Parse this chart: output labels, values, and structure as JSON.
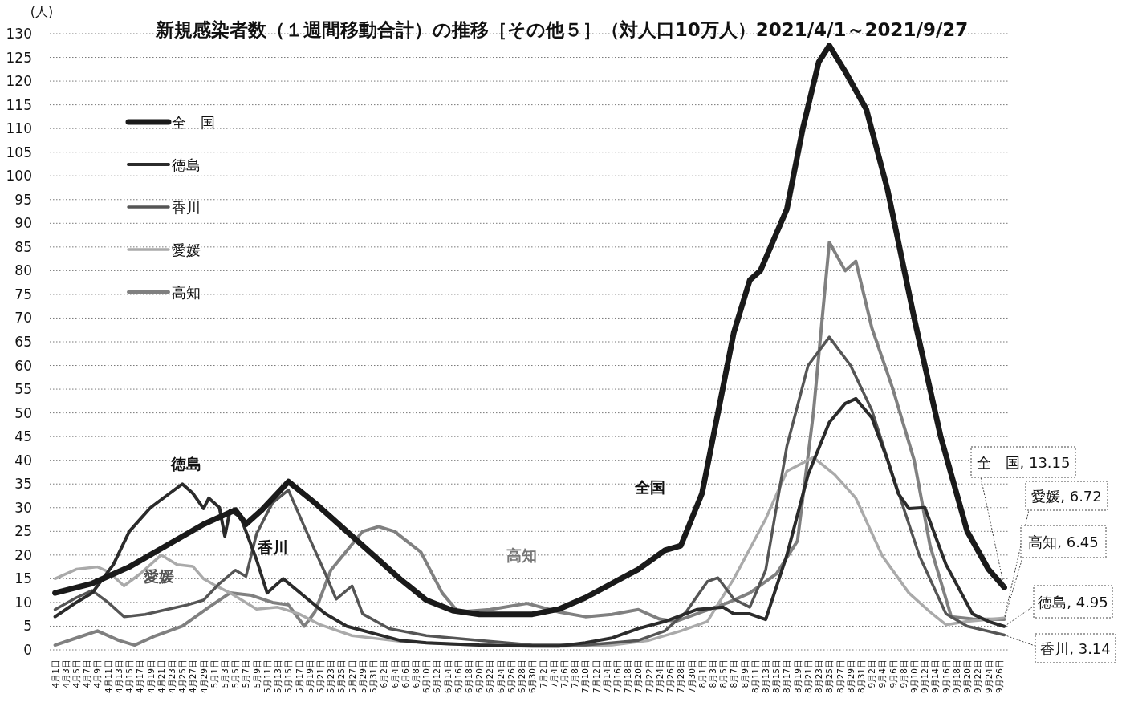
{
  "chart_data": {
    "type": "line",
    "title": "新規感染者数（１週間移動合計）の推移［その他５］（対人口10万人）2021/4/1～2021/9/27",
    "ylabel": "(人)",
    "xlim": [
      "2021-03-31",
      "2021-09-28"
    ],
    "ylim": [
      0,
      130
    ],
    "yticks": [
      0,
      5,
      10,
      15,
      20,
      25,
      30,
      35,
      40,
      45,
      50,
      55,
      60,
      65,
      70,
      75,
      80,
      85,
      90,
      95,
      100,
      105,
      110,
      115,
      120,
      125,
      130
    ],
    "xticks": [
      {
        "value": "2021-04-01",
        "label": "4月1日"
      },
      {
        "value": "2021-04-03",
        "label": "4月3日"
      },
      {
        "value": "2021-04-05",
        "label": "4月5日"
      },
      {
        "value": "2021-04-07",
        "label": "4月7日"
      },
      {
        "value": "2021-04-09",
        "label": "4月9日"
      },
      {
        "value": "2021-04-11",
        "label": "4月11日"
      },
      {
        "value": "2021-04-13",
        "label": "4月13日"
      },
      {
        "value": "2021-04-15",
        "label": "4月15日"
      },
      {
        "value": "2021-04-17",
        "label": "4月17日"
      },
      {
        "value": "2021-04-19",
        "label": "4月19日"
      },
      {
        "value": "2021-04-21",
        "label": "4月21日"
      },
      {
        "value": "2021-04-23",
        "label": "4月23日"
      },
      {
        "value": "2021-04-25",
        "label": "4月25日"
      },
      {
        "value": "2021-04-27",
        "label": "4月27日"
      },
      {
        "value": "2021-04-29",
        "label": "4月29日"
      },
      {
        "value": "2021-05-01",
        "label": "5月1日"
      },
      {
        "value": "2021-05-03",
        "label": "5月3日"
      },
      {
        "value": "2021-05-05",
        "label": "5月5日"
      },
      {
        "value": "2021-05-07",
        "label": "5月7日"
      },
      {
        "value": "2021-05-09",
        "label": "5月9日"
      },
      {
        "value": "2021-05-11",
        "label": "5月11日"
      },
      {
        "value": "2021-05-13",
        "label": "5月13日"
      },
      {
        "value": "2021-05-15",
        "label": "5月15日"
      },
      {
        "value": "2021-05-17",
        "label": "5月17日"
      },
      {
        "value": "2021-05-19",
        "label": "5月19日"
      },
      {
        "value": "2021-05-21",
        "label": "5月21日"
      },
      {
        "value": "2021-05-23",
        "label": "5月23日"
      },
      {
        "value": "2021-05-25",
        "label": "5月25日"
      },
      {
        "value": "2021-05-27",
        "label": "5月27日"
      },
      {
        "value": "2021-05-29",
        "label": "5月29日"
      },
      {
        "value": "2021-05-31",
        "label": "5月31日"
      },
      {
        "value": "2021-06-02",
        "label": "6月2日"
      },
      {
        "value": "2021-06-04",
        "label": "6月4日"
      },
      {
        "value": "2021-06-06",
        "label": "6月6日"
      },
      {
        "value": "2021-06-08",
        "label": "6月8日"
      },
      {
        "value": "2021-06-10",
        "label": "6月10日"
      },
      {
        "value": "2021-06-12",
        "label": "6月12日"
      },
      {
        "value": "2021-06-14",
        "label": "6月14日"
      },
      {
        "value": "2021-06-16",
        "label": "6月16日"
      },
      {
        "value": "2021-06-18",
        "label": "6月18日"
      },
      {
        "value": "2021-06-20",
        "label": "6月20日"
      },
      {
        "value": "2021-06-22",
        "label": "6月22日"
      },
      {
        "value": "2021-06-24",
        "label": "6月24日"
      },
      {
        "value": "2021-06-26",
        "label": "6月26日"
      },
      {
        "value": "2021-06-28",
        "label": "6月28日"
      },
      {
        "value": "2021-06-30",
        "label": "6月30日"
      },
      {
        "value": "2021-07-02",
        "label": "7月2日"
      },
      {
        "value": "2021-07-04",
        "label": "7月4日"
      },
      {
        "value": "2021-07-06",
        "label": "7月6日"
      },
      {
        "value": "2021-07-08",
        "label": "7月8日"
      },
      {
        "value": "2021-07-10",
        "label": "7月10日"
      },
      {
        "value": "2021-07-12",
        "label": "7月12日"
      },
      {
        "value": "2021-07-14",
        "label": "7月14日"
      },
      {
        "value": "2021-07-16",
        "label": "7月16日"
      },
      {
        "value": "2021-07-18",
        "label": "7月18日"
      },
      {
        "value": "2021-07-20",
        "label": "7月20日"
      },
      {
        "value": "2021-07-22",
        "label": "7月22日"
      },
      {
        "value": "2021-07-24",
        "label": "7月24日"
      },
      {
        "value": "2021-07-26",
        "label": "7月26日"
      },
      {
        "value": "2021-07-28",
        "label": "7月28日"
      },
      {
        "value": "2021-07-30",
        "label": "7月30日"
      },
      {
        "value": "2021-08-01",
        "label": "8月1日"
      },
      {
        "value": "2021-08-03",
        "label": "8月3日"
      },
      {
        "value": "2021-08-05",
        "label": "8月5日"
      },
      {
        "value": "2021-08-07",
        "label": "8月7日"
      },
      {
        "value": "2021-08-09",
        "label": "8月9日"
      },
      {
        "value": "2021-08-11",
        "label": "8月11日"
      },
      {
        "value": "2021-08-13",
        "label": "8月13日"
      },
      {
        "value": "2021-08-15",
        "label": "8月15日"
      },
      {
        "value": "2021-08-17",
        "label": "8月17日"
      },
      {
        "value": "2021-08-19",
        "label": "8月19日"
      },
      {
        "value": "2021-08-21",
        "label": "8月21日"
      },
      {
        "value": "2021-08-23",
        "label": "8月23日"
      },
      {
        "value": "2021-08-25",
        "label": "8月25日"
      },
      {
        "value": "2021-08-27",
        "label": "8月27日"
      },
      {
        "value": "2021-08-29",
        "label": "8月29日"
      },
      {
        "value": "2021-08-31",
        "label": "8月31日"
      },
      {
        "value": "2021-09-02",
        "label": "9月2日"
      },
      {
        "value": "2021-09-04",
        "label": "9月4日"
      },
      {
        "value": "2021-09-06",
        "label": "9月6日"
      },
      {
        "value": "2021-09-08",
        "label": "9月8日"
      },
      {
        "value": "2021-09-10",
        "label": "9月10日"
      },
      {
        "value": "2021-09-12",
        "label": "9月12日"
      },
      {
        "value": "2021-09-14",
        "label": "9月14日"
      },
      {
        "value": "2021-09-16",
        "label": "9月16日"
      },
      {
        "value": "2021-09-18",
        "label": "9月18日"
      },
      {
        "value": "2021-09-20",
        "label": "9月20日"
      },
      {
        "value": "2021-09-22",
        "label": "9月22日"
      },
      {
        "value": "2021-09-24",
        "label": "9月24日"
      },
      {
        "value": "2021-09-26",
        "label": "9月26日"
      }
    ],
    "grid": "y",
    "legend": "top left",
    "marker": "none",
    "line_style": "solid",
    "series": [
      {
        "name": "全　国",
        "color": "#1a1a1a",
        "x": [
          "2021-04-01",
          "2021-04-08",
          "2021-04-15",
          "2021-04-22",
          "2021-04-29",
          "2021-05-03",
          "2021-05-05",
          "2021-05-07",
          "2021-05-10",
          "2021-05-15",
          "2021-05-20",
          "2021-05-25",
          "2021-05-30",
          "2021-06-05",
          "2021-06-10",
          "2021-06-15",
          "2021-06-20",
          "2021-06-30",
          "2021-07-05",
          "2021-07-10",
          "2021-07-15",
          "2021-07-20",
          "2021-07-25",
          "2021-07-28",
          "2021-08-01",
          "2021-08-04",
          "2021-08-07",
          "2021-08-10",
          "2021-08-12",
          "2021-08-17",
          "2021-08-20",
          "2021-08-23",
          "2021-08-25",
          "2021-08-28",
          "2021-09-01",
          "2021-09-05",
          "2021-09-10",
          "2021-09-15",
          "2021-09-20",
          "2021-09-24",
          "2021-09-27"
        ],
        "values": [
          12,
          14,
          17.5,
          22,
          26.5,
          28.5,
          29.5,
          26.5,
          29.5,
          35.5,
          31,
          26,
          21,
          15,
          10.5,
          8.3,
          7.5,
          7.5,
          8.6,
          11,
          14,
          17,
          21,
          22,
          33,
          50,
          67,
          78,
          80,
          93,
          110,
          124,
          127.5,
          122,
          114,
          97,
          70,
          45,
          25,
          17,
          13.15
        ]
      },
      {
        "name": "徳島",
        "color": "#2b2b2b",
        "x": [
          "2021-04-01",
          "2021-04-05",
          "2021-04-08",
          "2021-04-12",
          "2021-04-15",
          "2021-04-19",
          "2021-04-22",
          "2021-04-25",
          "2021-04-27",
          "2021-04-29",
          "2021-04-30",
          "2021-05-02",
          "2021-05-03",
          "2021-05-04",
          "2021-05-06",
          "2021-05-09",
          "2021-05-11",
          "2021-05-14",
          "2021-05-18",
          "2021-05-22",
          "2021-05-26",
          "2021-05-31",
          "2021-06-05",
          "2021-06-10",
          "2021-06-20",
          "2021-06-30",
          "2021-07-05",
          "2021-07-10",
          "2021-07-15",
          "2021-07-20",
          "2021-07-25",
          "2021-07-31",
          "2021-08-05",
          "2021-08-07",
          "2021-08-10",
          "2021-08-13",
          "2021-08-17",
          "2021-08-21",
          "2021-08-25",
          "2021-08-28",
          "2021-08-30",
          "2021-09-02",
          "2021-09-05",
          "2021-09-07",
          "2021-09-09",
          "2021-09-12",
          "2021-09-16",
          "2021-09-21",
          "2021-09-24",
          "2021-09-27"
        ],
        "values": [
          7,
          10,
          12,
          18,
          25,
          30,
          32.5,
          35,
          33,
          29.8,
          32,
          30,
          24,
          29.4,
          28,
          19,
          12,
          15,
          11.3,
          7.6,
          5,
          3.5,
          2,
          1.5,
          1,
          0.8,
          0.8,
          1.5,
          2.5,
          4.5,
          6,
          8.5,
          9,
          7.6,
          7.6,
          6.4,
          20,
          37,
          48,
          52,
          53,
          49,
          40,
          33,
          29.8,
          30,
          18,
          7.6,
          6,
          4.95
        ]
      },
      {
        "name": "香川",
        "color": "#555555",
        "x": [
          "2021-04-01",
          "2021-04-05",
          "2021-04-08",
          "2021-04-11",
          "2021-04-14",
          "2021-04-18",
          "2021-04-22",
          "2021-04-26",
          "2021-04-29",
          "2021-05-02",
          "2021-05-05",
          "2021-05-07",
          "2021-05-09",
          "2021-05-12",
          "2021-05-15",
          "2021-05-18",
          "2021-05-20",
          "2021-05-22",
          "2021-05-24",
          "2021-05-27",
          "2021-05-29",
          "2021-06-03",
          "2021-06-10",
          "2021-06-20",
          "2021-06-30",
          "2021-07-10",
          "2021-07-15",
          "2021-07-20",
          "2021-07-25",
          "2021-07-29",
          "2021-08-02",
          "2021-08-04",
          "2021-08-07",
          "2021-08-10",
          "2021-08-13",
          "2021-08-17",
          "2021-08-21",
          "2021-08-25",
          "2021-08-29",
          "2021-09-02",
          "2021-09-06",
          "2021-09-11",
          "2021-09-16",
          "2021-09-20",
          "2021-09-27"
        ],
        "values": [
          8.5,
          11,
          12.5,
          10,
          7,
          7.5,
          8.5,
          9.5,
          10.5,
          14,
          16.8,
          15.5,
          24.5,
          31,
          33.7,
          26,
          21,
          16,
          10.7,
          13.5,
          7.6,
          4.5,
          3,
          2,
          1,
          1,
          1.5,
          2,
          4,
          8,
          14.4,
          15.2,
          10.7,
          9,
          16.8,
          43,
          60,
          66,
          60,
          50.6,
          36.7,
          19.8,
          7.6,
          5,
          3.14
        ]
      },
      {
        "name": "愛媛",
        "color": "#aaaaaa",
        "x": [
          "2021-04-01",
          "2021-04-05",
          "2021-04-09",
          "2021-04-11",
          "2021-04-14",
          "2021-04-17",
          "2021-04-21",
          "2021-04-24",
          "2021-04-27",
          "2021-04-29",
          "2021-05-01",
          "2021-05-04",
          "2021-05-09",
          "2021-05-13",
          "2021-05-17",
          "2021-05-21",
          "2021-05-27",
          "2021-06-05",
          "2021-06-15",
          "2021-06-25",
          "2021-07-05",
          "2021-07-15",
          "2021-07-22",
          "2021-07-28",
          "2021-08-02",
          "2021-08-07",
          "2021-08-13",
          "2021-08-17",
          "2021-08-22",
          "2021-08-26",
          "2021-08-30",
          "2021-09-04",
          "2021-09-09",
          "2021-09-13",
          "2021-09-16",
          "2021-09-20",
          "2021-09-27"
        ],
        "values": [
          15,
          17,
          17.5,
          16.5,
          13.5,
          16,
          20,
          18,
          17.6,
          15,
          13.7,
          12,
          8.6,
          9,
          7.6,
          5.3,
          3,
          1.8,
          1.2,
          0.8,
          0.7,
          1,
          2,
          4,
          6,
          15,
          27.6,
          37.7,
          40.6,
          37,
          32,
          19.8,
          12,
          8,
          5.3,
          6,
          6.72
        ]
      },
      {
        "name": "高知",
        "color": "#808080",
        "x": [
          "2021-04-01",
          "2021-04-05",
          "2021-04-09",
          "2021-04-13",
          "2021-04-16",
          "2021-04-20",
          "2021-04-25",
          "2021-04-30",
          "2021-05-04",
          "2021-05-08",
          "2021-05-12",
          "2021-05-15",
          "2021-05-18",
          "2021-05-20",
          "2021-05-23",
          "2021-05-29",
          "2021-06-01",
          "2021-06-04",
          "2021-06-09",
          "2021-06-13",
          "2021-06-16",
          "2021-06-22",
          "2021-06-29",
          "2021-07-05",
          "2021-07-10",
          "2021-07-15",
          "2021-07-20",
          "2021-07-24",
          "2021-07-27",
          "2021-08-01",
          "2021-08-06",
          "2021-08-10",
          "2021-08-15",
          "2021-08-19",
          "2021-08-22",
          "2021-08-25",
          "2021-08-28",
          "2021-08-30",
          "2021-09-02",
          "2021-09-06",
          "2021-09-10",
          "2021-09-13",
          "2021-09-17",
          "2021-09-21",
          "2021-09-27"
        ],
        "values": [
          1,
          2.5,
          4,
          2,
          1,
          3,
          5,
          9,
          12,
          11.5,
          10,
          9.5,
          5,
          8,
          16.8,
          25,
          26,
          25,
          20.6,
          12,
          8,
          8.5,
          9.8,
          8,
          7,
          7.5,
          8.5,
          6.5,
          6,
          8,
          10,
          12,
          16,
          23,
          50,
          86,
          80,
          82,
          68,
          55,
          40,
          22,
          7,
          6.5,
          6.45
        ]
      }
    ],
    "annotations": [
      "徳島",
      "香川",
      "愛媛",
      "高知",
      "全国",
      {
        "text": "全　国, 13.15",
        "x": "2021-09-27",
        "y": 13.15
      },
      {
        "text": "愛媛, 6.72",
        "x": "2021-09-27",
        "y": 6.72
      },
      {
        "text": "高知, 6.45",
        "x": "2021-09-27",
        "y": 6.45
      },
      {
        "text": "徳島, 4.95",
        "x": "2021-09-27",
        "y": 4.95
      },
      {
        "text": "香川, 3.14",
        "x": "2021-09-27",
        "y": 3.14
      }
    ]
  }
}
